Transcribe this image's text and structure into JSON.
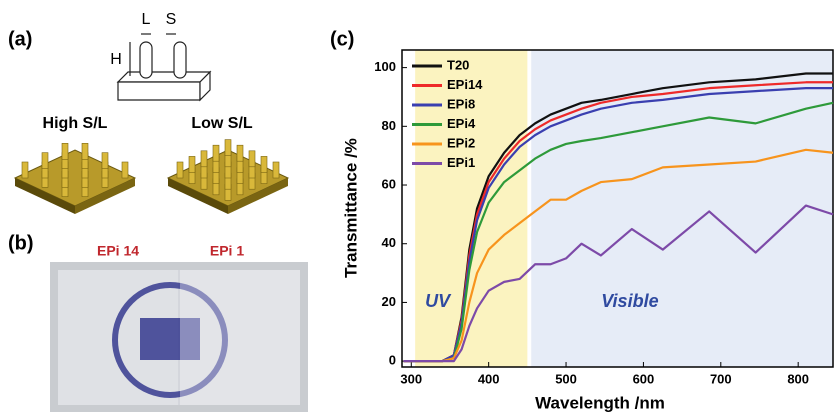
{
  "panels": {
    "a": {
      "label": "(a)",
      "dimensions": [
        "L",
        "S",
        "H"
      ],
      "captions": [
        "High S/L",
        "Low S/L"
      ]
    },
    "b": {
      "label": "(b)",
      "captions": [
        "EPi 14",
        "EPi 1"
      ]
    }
  },
  "chart_data": {
    "type": "line",
    "panel_label": "(c)",
    "x_label": "Wavelength /nm",
    "y_label": "Transmittance /%",
    "x": [
      290,
      340,
      355,
      365,
      375,
      385,
      400,
      420,
      440,
      460,
      480,
      500,
      520,
      545,
      585,
      625,
      685,
      745,
      810,
      845
    ],
    "series": [
      {
        "name": "T20",
        "color": "#111111",
        "values": [
          0,
          0,
          2,
          15,
          38,
          52,
          63,
          71,
          77,
          81,
          84,
          86,
          88,
          89,
          91,
          93,
          95,
          96,
          98,
          98
        ]
      },
      {
        "name": "EPi14",
        "color": "#ee2a2a",
        "values": [
          0,
          0,
          2,
          14,
          36,
          50,
          61,
          69,
          75,
          79,
          82,
          84,
          86,
          88,
          90,
          91,
          93,
          94,
          95,
          95
        ]
      },
      {
        "name": "EPi8",
        "color": "#3a3fb0",
        "values": [
          0,
          0,
          2,
          13,
          34,
          48,
          59,
          67,
          73,
          77,
          80,
          82,
          84,
          86,
          88,
          89,
          91,
          92,
          93,
          93
        ]
      },
      {
        "name": "EPi4",
        "color": "#2e9a3a",
        "values": [
          0,
          0,
          1,
          11,
          31,
          44,
          54,
          61,
          65,
          69,
          72,
          74,
          75,
          76,
          78,
          80,
          83,
          81,
          86,
          88
        ]
      },
      {
        "name": "EPi2",
        "color": "#f7941d",
        "values": [
          0,
          0,
          1,
          7,
          20,
          30,
          38,
          43,
          47,
          51,
          55,
          55,
          58,
          61,
          62,
          66,
          67,
          68,
          72,
          71
        ]
      },
      {
        "name": "EPi1",
        "color": "#7d4aa8",
        "values": [
          0,
          0,
          0,
          4,
          12,
          18,
          24,
          27,
          28,
          33,
          33,
          35,
          40,
          36,
          45,
          38,
          51,
          37,
          53,
          50
        ]
      }
    ],
    "regions": [
      {
        "label": "UV",
        "range": [
          305,
          450
        ],
        "color": "#fbf3c0",
        "text_color": "#2f4aa0"
      },
      {
        "label": "Visible",
        "range": [
          455,
          845
        ],
        "color": "#e6ecf7",
        "text_color": "#2f4aa0"
      }
    ],
    "xlim": [
      288,
      845
    ],
    "ylim": [
      -2,
      106
    ],
    "xticks": [
      300,
      400,
      500,
      600,
      700,
      800
    ],
    "yticks": [
      0,
      20,
      40,
      60,
      80,
      100
    ],
    "legend": "upper left"
  }
}
